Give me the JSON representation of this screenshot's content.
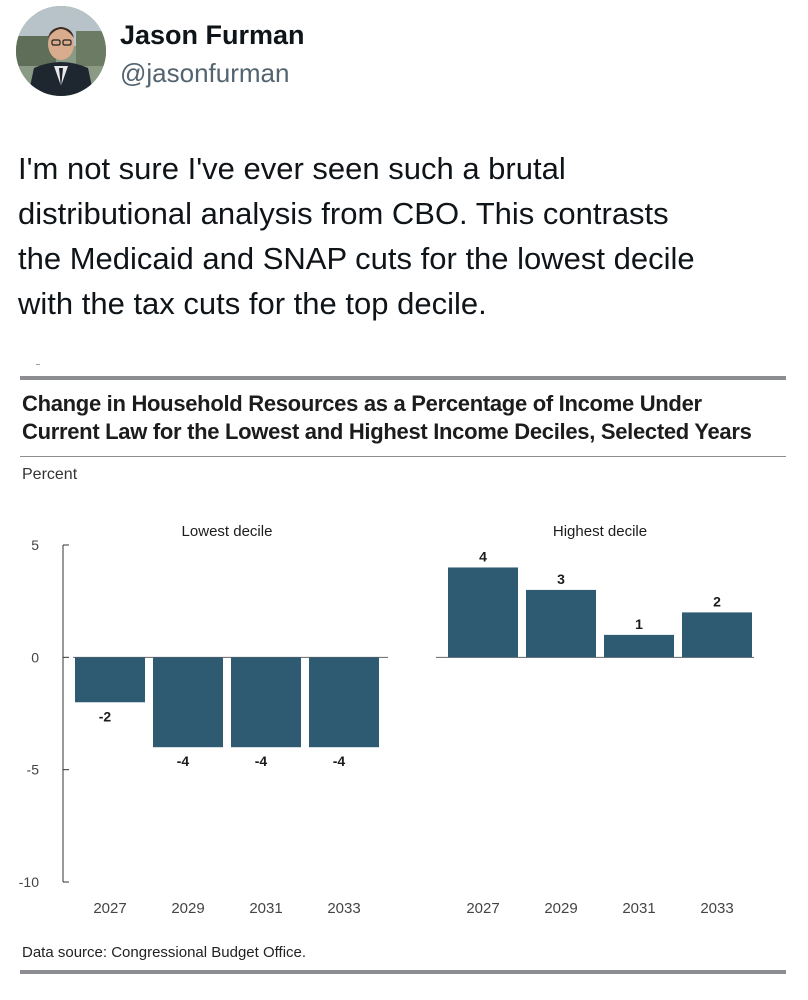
{
  "author": {
    "name": "Jason Furman",
    "handle": "@jasonfurman"
  },
  "tweet": {
    "text_lines": [
      "I'm not sure I've ever seen such a brutal",
      "distributional analysis from CBO. This contrasts",
      "the Medicaid and SNAP cuts for the lowest decile",
      "with the tax cuts for the top decile."
    ]
  },
  "figure": {
    "title_line1": "Change in Household Resources as a Percentage of Income Under",
    "title_line2": "Current Law for the Lowest and Highest Income Deciles, Selected Years",
    "unit_label": "Percent",
    "source": "Data source: Congressional Budget Office."
  },
  "colors": {
    "bar": "#2e5b72",
    "axis": "#333333",
    "rule": "#8b8d90"
  },
  "chart_data": {
    "type": "bar",
    "ylabel": "Percent",
    "ylim": [
      -10,
      5
    ],
    "yticks": [
      5,
      0,
      -5,
      -10
    ],
    "ytick_labels": [
      "5",
      "0",
      "-5",
      "-10"
    ],
    "panels": [
      {
        "title": "Lowest decile",
        "categories": [
          "2027",
          "2029",
          "2031",
          "2033"
        ],
        "values": [
          -2,
          -4,
          -4,
          -4
        ],
        "value_labels": [
          "-2",
          "-4",
          "-4",
          "-4"
        ]
      },
      {
        "title": "Highest decile",
        "categories": [
          "2027",
          "2029",
          "2031",
          "2033"
        ],
        "values": [
          4,
          3,
          1,
          2
        ],
        "value_labels": [
          "4",
          "3",
          "1",
          "2"
        ]
      }
    ]
  }
}
